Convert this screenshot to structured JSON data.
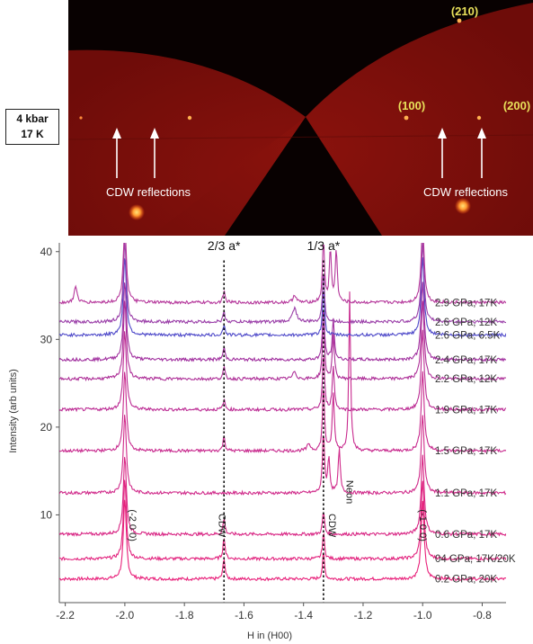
{
  "detector_image": {
    "condition_lines": [
      "4 kbar",
      "17 K"
    ],
    "peak_labels": [
      "(210)",
      "(100)",
      "(200)"
    ],
    "annotations": [
      "CDW reflections",
      "CDW reflections"
    ],
    "colors": {
      "background": "#0a0202",
      "detector": "#7e0f0b",
      "label": "#e8e05a",
      "annotation": "#ffffff"
    }
  },
  "chart_data": {
    "type": "line",
    "title": "",
    "xlabel": "H in (H00)",
    "ylabel": "Intensity (arb units)",
    "xlim": [
      -2.22,
      -0.72
    ],
    "ylim": [
      0,
      41
    ],
    "xticks": [
      -2.2,
      -2.0,
      -1.8,
      -1.6,
      -1.4,
      -1.2,
      -1.0,
      -0.8
    ],
    "xtick_labels": [
      "-2.2",
      "-2.0",
      "-1.8",
      "-1.6",
      "-1.4",
      "-1.2",
      "-1.0",
      "-0.8"
    ],
    "yticks": [
      10,
      20,
      30,
      40
    ],
    "ytick_labels": [
      "10",
      "20",
      "30",
      "40"
    ],
    "grid": false,
    "reference_lines": [
      {
        "x": -1.667,
        "label": "2/3 a*"
      },
      {
        "x": -1.333,
        "label": "1/3 a*"
      }
    ],
    "annotations": [
      {
        "x": -1.985,
        "y": 8.8,
        "text": "(-2 0 0)",
        "rotation": 90
      },
      {
        "x": -1.685,
        "y": 8.8,
        "text": "CDW",
        "rotation": 90
      },
      {
        "x": -1.315,
        "y": 8.8,
        "text": "CDW",
        "rotation": 90
      },
      {
        "x": -1.255,
        "y": 12.6,
        "text": "Neon",
        "rotation": 90
      },
      {
        "x": -1.01,
        "y": 8.8,
        "text": "(-1 0 0)",
        "rotation": 90
      }
    ],
    "series": [
      {
        "name": "0.2 GPa; 20K",
        "baseline": 2.7,
        "color": "#e8207a",
        "peaks": [
          {
            "x": -2.0,
            "height": 9,
            "width": 0.006
          },
          {
            "x": -1.667,
            "height": 2.4,
            "width": 0.004
          },
          {
            "x": -1.333,
            "height": 3.0,
            "width": 0.004
          },
          {
            "x": -1.0,
            "height": 9,
            "width": 0.006
          }
        ]
      },
      {
        "name": "04 GPa; 17K/20K",
        "baseline": 5.0,
        "color": "#e2237e",
        "peaks": [
          {
            "x": -2.0,
            "height": 9,
            "width": 0.006
          },
          {
            "x": -1.667,
            "height": 2.5,
            "width": 0.004
          },
          {
            "x": -1.333,
            "height": 3.0,
            "width": 0.004
          },
          {
            "x": -1.0,
            "height": 9,
            "width": 0.006
          }
        ]
      },
      {
        "name": "0.6 GPa; 17K",
        "baseline": 7.8,
        "color": "#d82483",
        "peaks": [
          {
            "x": -2.0,
            "height": 9,
            "width": 0.006
          },
          {
            "x": -1.667,
            "height": 1.8,
            "width": 0.004
          },
          {
            "x": -1.333,
            "height": 2.6,
            "width": 0.004
          },
          {
            "x": -1.0,
            "height": 9,
            "width": 0.006
          }
        ]
      },
      {
        "name": "1.1 GPa; 17K",
        "baseline": 12.5,
        "color": "#d02a8a",
        "peaks": [
          {
            "x": -2.0,
            "height": 9,
            "width": 0.006
          },
          {
            "x": -1.333,
            "height": 7.0,
            "width": 0.004
          },
          {
            "x": -1.315,
            "height": 4.0,
            "width": 0.004
          },
          {
            "x": -1.28,
            "height": 5.0,
            "width": 0.004
          },
          {
            "x": -1.0,
            "height": 9,
            "width": 0.006
          }
        ]
      },
      {
        "name": "1.5 GPa; 17K",
        "baseline": 17.3,
        "color": "#c82a8e",
        "peaks": [
          {
            "x": -2.0,
            "height": 9,
            "width": 0.006
          },
          {
            "x": -1.667,
            "height": 1.7,
            "width": 0.004
          },
          {
            "x": -1.382,
            "height": 0.8,
            "width": 0.006
          },
          {
            "x": -1.333,
            "height": 7.5,
            "width": 0.004
          },
          {
            "x": -1.3,
            "height": 6.5,
            "width": 0.004
          },
          {
            "x": -1.245,
            "height": 18.0,
            "width": 0.0035
          },
          {
            "x": -1.0,
            "height": 9,
            "width": 0.006
          }
        ]
      },
      {
        "name": "1.9 GPa; 17K",
        "baseline": 22.0,
        "color": "#bc2c94",
        "peaks": [
          {
            "x": -2.0,
            "height": 9,
            "width": 0.006
          },
          {
            "x": -1.667,
            "height": 1.1,
            "width": 0.004
          },
          {
            "x": -1.333,
            "height": 6.5,
            "width": 0.004
          },
          {
            "x": -1.3,
            "height": 5.0,
            "width": 0.004
          },
          {
            "x": -1.0,
            "height": 9,
            "width": 0.006
          }
        ]
      },
      {
        "name": "2.2 GPa; 12K",
        "baseline": 25.5,
        "color": "#ae3098",
        "peaks": [
          {
            "x": -2.0,
            "height": 9,
            "width": 0.006
          },
          {
            "x": -1.667,
            "height": 1.3,
            "width": 0.004
          },
          {
            "x": -1.43,
            "height": 0.9,
            "width": 0.006
          },
          {
            "x": -1.333,
            "height": 7.0,
            "width": 0.004
          },
          {
            "x": -1.3,
            "height": 5.0,
            "width": 0.004
          },
          {
            "x": -1.0,
            "height": 9,
            "width": 0.006
          }
        ]
      },
      {
        "name": "2.4 GPa; 17K",
        "baseline": 27.7,
        "color": "#a02e9e",
        "peaks": [
          {
            "x": -2.0,
            "height": 9,
            "width": 0.006
          },
          {
            "x": -1.667,
            "height": 1.4,
            "width": 0.004
          },
          {
            "x": -1.333,
            "height": 6.0,
            "width": 0.004
          },
          {
            "x": -1.3,
            "height": 4.5,
            "width": 0.004
          },
          {
            "x": -1.0,
            "height": 9,
            "width": 0.006
          }
        ]
      },
      {
        "name": "2.6 GPa; 6.5K",
        "baseline": 30.5,
        "color": "#4e49c9",
        "peaks": [
          {
            "x": -2.0,
            "height": 9,
            "width": 0.006
          },
          {
            "x": -1.667,
            "height": 1.2,
            "width": 0.004
          },
          {
            "x": -1.333,
            "height": 5.5,
            "width": 0.004
          },
          {
            "x": -1.0,
            "height": 9,
            "width": 0.006
          }
        ]
      },
      {
        "name": "2.6 GPa; 12K",
        "baseline": 32.0,
        "color": "#9a3ea8",
        "peaks": [
          {
            "x": -2.0,
            "height": 9,
            "width": 0.006
          },
          {
            "x": -1.667,
            "height": 1.1,
            "width": 0.004
          },
          {
            "x": -1.43,
            "height": 1.6,
            "width": 0.008
          },
          {
            "x": -1.333,
            "height": 6.0,
            "width": 0.004
          },
          {
            "x": -1.0,
            "height": 9,
            "width": 0.006
          }
        ]
      },
      {
        "name": "2.9 GPa; 17K",
        "baseline": 34.2,
        "color": "#b5379b",
        "peaks": [
          {
            "x": -2.0,
            "height": 9,
            "width": 0.006
          },
          {
            "x": -1.667,
            "height": 1.3,
            "width": 0.004
          },
          {
            "x": -1.43,
            "height": 0.9,
            "width": 0.006
          },
          {
            "x": -1.333,
            "height": 7.0,
            "width": 0.004
          },
          {
            "x": -1.31,
            "height": 6.0,
            "width": 0.004
          },
          {
            "x": -1.29,
            "height": 6.0,
            "width": 0.004
          },
          {
            "x": -1.0,
            "height": 9,
            "width": 0.006
          }
        ]
      }
    ],
    "edge_feature": {
      "series_index": 10,
      "x": -2.165,
      "height": 2.0
    }
  }
}
